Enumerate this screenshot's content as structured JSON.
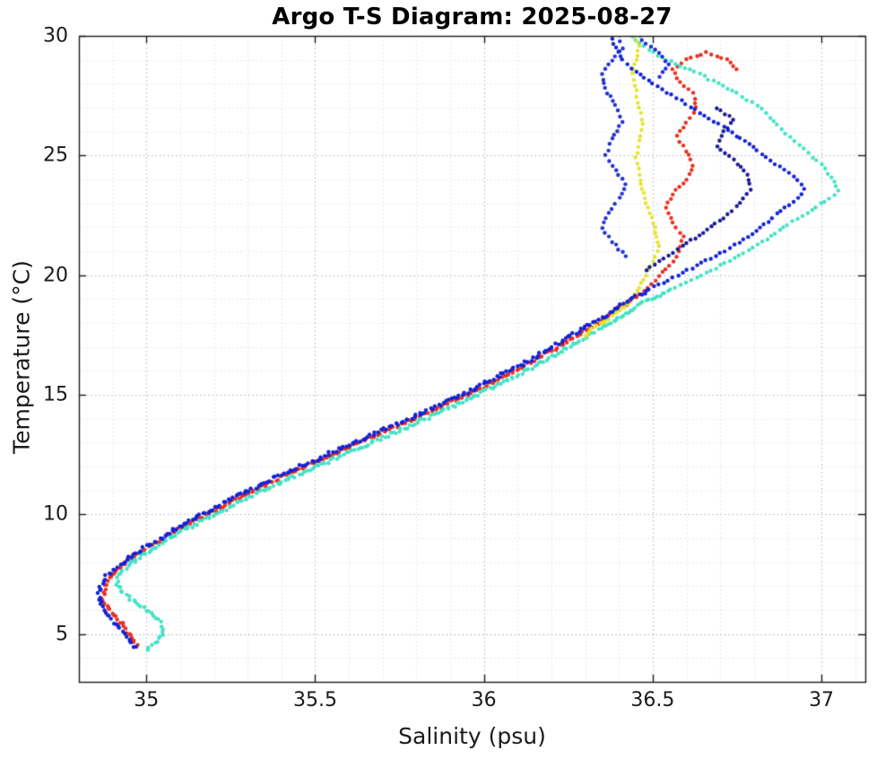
{
  "chart_data": {
    "type": "scatter",
    "title": "Argo T-S Diagram: 2025-08-27",
    "xlabel": "Salinity (psu)",
    "ylabel": "Temperature (°C)",
    "xlim": [
      34.8,
      37.13
    ],
    "ylim": [
      3.0,
      30.0
    ],
    "xticks": [
      35,
      35.5,
      36,
      36.5,
      37
    ],
    "xtick_labels": [
      "35",
      "35.5",
      "36",
      "36.5",
      "37"
    ],
    "yticks": [
      5,
      10,
      15,
      20,
      25,
      30
    ],
    "ytick_labels": [
      "5",
      "10",
      "15",
      "20",
      "25",
      "30"
    ],
    "x_minor_step": 0.1,
    "y_minor_step": 1,
    "grid": "dotted major and minor",
    "legend": "none",
    "marker": "filled-dot",
    "background": "#ffffff",
    "colors": {
      "grid_major": "#aeaeae",
      "grid_minor": "#dfdfdf",
      "axis_box": "#1a1a1a"
    },
    "series": [
      {
        "name": "float-red",
        "color": "#ea2f1f",
        "points": [
          [
            34.97,
            4.5
          ],
          [
            34.95,
            5.0
          ],
          [
            34.92,
            5.5
          ],
          [
            34.89,
            6.0
          ],
          [
            34.87,
            6.5
          ],
          [
            34.88,
            7.0
          ],
          [
            34.9,
            7.5
          ],
          [
            34.94,
            8.0
          ],
          [
            34.99,
            8.5
          ],
          [
            35.05,
            9.0
          ],
          [
            35.11,
            9.5
          ],
          [
            35.18,
            10.0
          ],
          [
            35.25,
            10.5
          ],
          [
            35.32,
            11.0
          ],
          [
            35.39,
            11.5
          ],
          [
            35.47,
            12.0
          ],
          [
            35.55,
            12.5
          ],
          [
            35.63,
            13.0
          ],
          [
            35.71,
            13.5
          ],
          [
            35.79,
            14.0
          ],
          [
            35.87,
            14.5
          ],
          [
            35.95,
            15.0
          ],
          [
            36.02,
            15.5
          ],
          [
            36.09,
            16.0
          ],
          [
            36.16,
            16.5
          ],
          [
            36.22,
            17.0
          ],
          [
            36.28,
            17.5
          ],
          [
            36.34,
            18.0
          ],
          [
            36.4,
            18.6
          ],
          [
            36.46,
            19.2
          ],
          [
            36.51,
            19.8
          ],
          [
            36.55,
            20.4
          ],
          [
            36.58,
            21.0
          ],
          [
            36.59,
            21.6
          ],
          [
            36.56,
            22.2
          ],
          [
            36.54,
            22.8
          ],
          [
            36.56,
            23.4
          ],
          [
            36.6,
            24.0
          ],
          [
            36.62,
            24.6
          ],
          [
            36.6,
            25.2
          ],
          [
            36.57,
            25.8
          ],
          [
            36.6,
            26.4
          ],
          [
            36.63,
            27.0
          ],
          [
            36.62,
            27.6
          ],
          [
            36.58,
            28.1
          ],
          [
            36.56,
            28.6
          ],
          [
            36.6,
            29.0
          ],
          [
            36.66,
            29.3
          ],
          [
            36.72,
            29.0
          ],
          [
            36.75,
            28.6
          ]
        ]
      },
      {
        "name": "float-cyan",
        "color": "#44e2c5",
        "points": [
          [
            35.0,
            4.4
          ],
          [
            35.03,
            4.7
          ],
          [
            35.05,
            5.1
          ],
          [
            35.04,
            5.5
          ],
          [
            35.01,
            5.9
          ],
          [
            34.97,
            6.3
          ],
          [
            34.93,
            6.7
          ],
          [
            34.91,
            7.1
          ],
          [
            34.92,
            7.5
          ],
          [
            34.95,
            7.9
          ],
          [
            35.0,
            8.4
          ],
          [
            35.06,
            8.9
          ],
          [
            35.12,
            9.4
          ],
          [
            35.19,
            9.9
          ],
          [
            35.26,
            10.4
          ],
          [
            35.33,
            10.9
          ],
          [
            35.41,
            11.4
          ],
          [
            35.49,
            11.9
          ],
          [
            35.57,
            12.4
          ],
          [
            35.65,
            12.9
          ],
          [
            35.73,
            13.4
          ],
          [
            35.81,
            13.9
          ],
          [
            35.89,
            14.4
          ],
          [
            35.97,
            14.9
          ],
          [
            36.04,
            15.4
          ],
          [
            36.11,
            15.9
          ],
          [
            36.18,
            16.4
          ],
          [
            36.24,
            16.9
          ],
          [
            36.3,
            17.4
          ],
          [
            36.36,
            17.9
          ],
          [
            36.42,
            18.4
          ],
          [
            36.48,
            18.9
          ],
          [
            36.55,
            19.4
          ],
          [
            36.63,
            19.9
          ],
          [
            36.7,
            20.4
          ],
          [
            36.77,
            20.9
          ],
          [
            36.84,
            21.5
          ],
          [
            36.9,
            22.1
          ],
          [
            36.96,
            22.6
          ],
          [
            37.01,
            23.1
          ],
          [
            37.05,
            23.5
          ],
          [
            37.03,
            24.1
          ],
          [
            37.0,
            24.6
          ],
          [
            36.96,
            25.1
          ],
          [
            36.92,
            25.6
          ],
          [
            36.88,
            26.1
          ],
          [
            36.85,
            26.6
          ],
          [
            36.81,
            27.1
          ],
          [
            36.75,
            27.6
          ],
          [
            36.68,
            28.1
          ],
          [
            36.61,
            28.6
          ],
          [
            36.54,
            29.0
          ],
          [
            36.49,
            29.4
          ],
          [
            36.46,
            29.7
          ],
          [
            36.44,
            30.0
          ]
        ]
      },
      {
        "name": "float-yellow",
        "color": "#e6e32f",
        "points": [
          [
            36.3,
            17.5
          ],
          [
            36.35,
            18.0
          ],
          [
            36.4,
            18.5
          ],
          [
            36.44,
            19.0
          ],
          [
            36.46,
            19.5
          ],
          [
            36.48,
            20.0
          ],
          [
            36.5,
            20.6
          ],
          [
            36.52,
            21.2
          ],
          [
            36.51,
            21.8
          ],
          [
            36.5,
            22.4
          ],
          [
            36.48,
            23.0
          ],
          [
            36.47,
            23.6
          ],
          [
            36.46,
            24.2
          ],
          [
            36.45,
            24.9
          ],
          [
            36.46,
            25.6
          ],
          [
            36.47,
            26.3
          ],
          [
            36.46,
            27.0
          ],
          [
            36.45,
            27.7
          ],
          [
            36.44,
            28.4
          ],
          [
            36.45,
            29.0
          ],
          [
            36.46,
            29.6
          ],
          [
            36.45,
            30.0
          ]
        ]
      },
      {
        "name": "float-navy-upper",
        "color": "#1a1a95",
        "points": [
          [
            36.48,
            20.2
          ],
          [
            36.53,
            20.7
          ],
          [
            36.59,
            21.2
          ],
          [
            36.65,
            21.8
          ],
          [
            36.71,
            22.4
          ],
          [
            36.76,
            23.0
          ],
          [
            36.79,
            23.6
          ],
          [
            36.78,
            24.2
          ],
          [
            36.74,
            24.8
          ],
          [
            36.69,
            25.4
          ],
          [
            36.71,
            26.0
          ],
          [
            36.74,
            26.5
          ],
          [
            36.69,
            27.0
          ]
        ]
      },
      {
        "name": "float-blue-vertical",
        "color": "#2233cc",
        "points": [
          [
            36.42,
            20.8
          ],
          [
            36.38,
            21.4
          ],
          [
            36.35,
            22.0
          ],
          [
            36.37,
            22.6
          ],
          [
            36.4,
            23.2
          ],
          [
            36.42,
            23.8
          ],
          [
            36.39,
            24.4
          ],
          [
            36.36,
            25.0
          ],
          [
            36.38,
            25.7
          ],
          [
            36.41,
            26.4
          ],
          [
            36.39,
            27.1
          ],
          [
            36.36,
            27.8
          ],
          [
            36.35,
            28.4
          ],
          [
            36.38,
            29.0
          ],
          [
            36.41,
            29.5
          ],
          [
            36.4,
            30.0
          ]
        ]
      },
      {
        "name": "float-blue-top",
        "color": "#1f2fd0",
        "points": [
          [
            36.52,
            28.3
          ],
          [
            36.55,
            28.8
          ],
          [
            36.52,
            29.3
          ],
          [
            36.48,
            29.7
          ],
          [
            36.46,
            30.0
          ]
        ]
      },
      {
        "name": "float-blue-main",
        "color": "#1322d6",
        "points": [
          [
            34.97,
            4.4
          ],
          [
            34.94,
            4.9
          ],
          [
            34.91,
            5.4
          ],
          [
            34.88,
            5.9
          ],
          [
            34.86,
            6.4
          ],
          [
            34.86,
            6.9
          ],
          [
            34.88,
            7.4
          ],
          [
            34.92,
            7.9
          ],
          [
            34.97,
            8.4
          ],
          [
            35.03,
            8.9
          ],
          [
            35.09,
            9.4
          ],
          [
            35.15,
            9.9
          ],
          [
            35.22,
            10.4
          ],
          [
            35.29,
            10.9
          ],
          [
            35.36,
            11.4
          ],
          [
            35.44,
            11.9
          ],
          [
            35.52,
            12.4
          ],
          [
            35.6,
            12.9
          ],
          [
            35.68,
            13.4
          ],
          [
            35.76,
            13.9
          ],
          [
            35.84,
            14.4
          ],
          [
            35.92,
            14.9
          ],
          [
            35.99,
            15.4
          ],
          [
            36.06,
            15.9
          ],
          [
            36.13,
            16.4
          ],
          [
            36.19,
            16.9
          ],
          [
            36.25,
            17.4
          ],
          [
            36.31,
            17.9
          ],
          [
            36.37,
            18.4
          ],
          [
            36.42,
            18.9
          ],
          [
            36.49,
            19.4
          ],
          [
            36.56,
            19.9
          ],
          [
            36.63,
            20.4
          ],
          [
            36.7,
            20.9
          ],
          [
            36.77,
            21.5
          ],
          [
            36.83,
            22.1
          ],
          [
            36.88,
            22.7
          ],
          [
            36.93,
            23.2
          ],
          [
            36.95,
            23.6
          ],
          [
            36.93,
            24.0
          ],
          [
            36.89,
            24.4
          ],
          [
            36.85,
            24.8
          ],
          [
            36.81,
            25.2
          ],
          [
            36.76,
            25.7
          ],
          [
            36.71,
            26.2
          ],
          [
            36.64,
            26.8
          ],
          [
            36.57,
            27.4
          ],
          [
            36.5,
            28.0
          ],
          [
            36.45,
            28.5
          ],
          [
            36.41,
            29.0
          ],
          [
            36.39,
            29.5
          ],
          [
            36.38,
            29.9
          ]
        ]
      }
    ]
  }
}
